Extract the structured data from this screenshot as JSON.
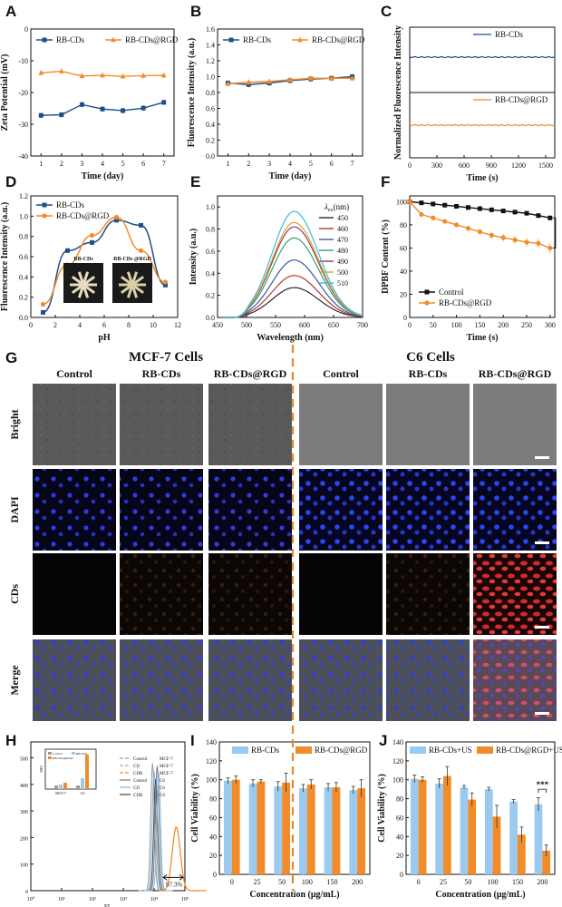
{
  "colors": {
    "blue": "#1f4e8c",
    "orange": "#f28c28",
    "lightblue": "#9cc9ee",
    "divider": "#e38a2e",
    "micro_bg": "#2a2a2a"
  },
  "chart_data": [
    {
      "panel": "A",
      "type": "line",
      "xlabel": "Time (day)",
      "ylabel": "Zeta Potential (mV)",
      "x": [
        1,
        2,
        3,
        4,
        5,
        6,
        7
      ],
      "xlim": [
        0.5,
        7.5
      ],
      "ylim": [
        -40,
        0
      ],
      "xticks": [
        "1",
        "2",
        "3",
        "4",
        "5",
        "6",
        "7"
      ],
      "yticks": [
        "0",
        "-10",
        "-20",
        "-30",
        "-40"
      ],
      "series": [
        {
          "name": "RB-CDs",
          "color": "blue",
          "marker": "square",
          "values": [
            -27.2,
            -27.0,
            -23.8,
            -25.2,
            -25.7,
            -24.9,
            -23.1
          ]
        },
        {
          "name": "RB-CDs@RGD",
          "color": "orange",
          "marker": "triangle",
          "values": [
            -13.8,
            -13.3,
            -14.8,
            -14.6,
            -14.9,
            -14.7,
            -14.6
          ]
        }
      ]
    },
    {
      "panel": "B",
      "type": "line",
      "xlabel": "Time (day)",
      "ylabel": "Fluorescence Intensity (a.u.)",
      "x": [
        1,
        2,
        3,
        4,
        5,
        6,
        7
      ],
      "xlim": [
        0.5,
        7.5
      ],
      "ylim": [
        0.0,
        1.6
      ],
      "xticks": [
        "1",
        "2",
        "3",
        "4",
        "5",
        "6",
        "7"
      ],
      "yticks": [
        "0.0",
        "0.2",
        "0.4",
        "0.6",
        "0.8",
        "1.0",
        "1.2",
        "1.4",
        "1.6"
      ],
      "series": [
        {
          "name": "RB-CDs",
          "color": "blue",
          "marker": "square",
          "values": [
            0.92,
            0.9,
            0.92,
            0.95,
            0.97,
            0.98,
            1.0
          ]
        },
        {
          "name": "RB-CDs@RGD",
          "color": "orange",
          "marker": "triangle",
          "values": [
            0.91,
            0.93,
            0.94,
            0.96,
            0.98,
            0.98,
            0.98
          ]
        }
      ]
    },
    {
      "panel": "C",
      "type": "line",
      "xlabel": "Time (s)",
      "ylabel": "Normalized Fluorescence Intensity",
      "xlim": [
        0,
        1600
      ],
      "xticks": [
        "0",
        "300",
        "600",
        "900",
        "1200",
        "1500"
      ],
      "series": [
        {
          "name": "RB-CDs",
          "color": "blue",
          "level": 1.0
        },
        {
          "name": "RB-CDs@RGD",
          "color": "orange",
          "level": 1.0
        }
      ]
    },
    {
      "panel": "D",
      "type": "line",
      "xlabel": "pH",
      "ylabel": "Fluorescence Intensity (a.u.)",
      "x": [
        1,
        3,
        5,
        7,
        9,
        11
      ],
      "xlim": [
        0,
        12
      ],
      "ylim": [
        0,
        1.2
      ],
      "xticks": [
        "0",
        "2",
        "4",
        "6",
        "8",
        "10",
        "12"
      ],
      "yticks": [
        "0.0",
        "0.2",
        "0.4",
        "0.6",
        "0.8",
        "1.0",
        "1.2"
      ],
      "series": [
        {
          "name": "RB-CDs",
          "color": "blue",
          "marker": "square",
          "x": [
            1,
            3,
            5,
            7,
            9,
            11
          ],
          "values": [
            0.05,
            0.66,
            0.74,
            0.96,
            0.91,
            0.32
          ]
        },
        {
          "name": "RB-CDs@RGD",
          "color": "orange",
          "marker": "circle",
          "x": [
            1,
            3,
            5,
            7,
            9,
            11
          ],
          "values": [
            0.13,
            0.52,
            0.81,
            0.99,
            0.66,
            0.35
          ]
        }
      ],
      "inset_labels": [
        "RB-CDs",
        "RB-CDs @RGD"
      ]
    },
    {
      "panel": "E",
      "type": "line",
      "xlabel": "Wavelength (nm)",
      "ylabel": "Intensity (a.u.)",
      "xlim": [
        450,
        700
      ],
      "ylim": [
        0,
        1.1
      ],
      "xticks": [
        "450",
        "500",
        "550",
        "600",
        "650",
        "700"
      ],
      "yticks": [
        "0.0",
        "0.2",
        "0.4",
        "0.6",
        "0.8",
        "1.0"
      ],
      "legend_title": "λ",
      "legend_sub": "ex",
      "legend_unit": "(nm)",
      "peak_nm": 582,
      "series": [
        {
          "name": "450",
          "color": "#2b2b2b",
          "peak": 0.27
        },
        {
          "name": "460",
          "color": "#b03a2e",
          "peak": 0.38
        },
        {
          "name": "470",
          "color": "#3a56a6",
          "peak": 0.52
        },
        {
          "name": "480",
          "color": "#3d9a73",
          "peak": 0.72
        },
        {
          "name": "490",
          "color": "#8e3a59",
          "peak": 0.82
        },
        {
          "name": "500",
          "color": "#d6a22b",
          "peak": 0.86
        },
        {
          "name": "510",
          "color": "#33bfe0",
          "peak": 0.96
        }
      ]
    },
    {
      "panel": "F",
      "type": "line",
      "xlabel": "Time (s)",
      "ylabel": "DPBF Content (%)",
      "x": [
        0,
        25,
        50,
        75,
        100,
        125,
        150,
        175,
        200,
        225,
        250,
        275,
        300
      ],
      "xlim": [
        0,
        310
      ],
      "ylim": [
        0,
        105
      ],
      "xticks": [
        "0",
        "50",
        "100",
        "150",
        "200",
        "250",
        "300"
      ],
      "yticks": [
        "0",
        "20",
        "40",
        "60",
        "80",
        "100"
      ],
      "annotation": "**",
      "series": [
        {
          "name": "Control",
          "color": "#111111",
          "marker": "square",
          "values": [
            100,
            99,
            98,
            97,
            96,
            95,
            94,
            93,
            92,
            91,
            90,
            88,
            86
          ]
        },
        {
          "name": "RB-CDs@RGD",
          "color": "orange",
          "marker": "circle",
          "values": [
            100,
            89,
            86,
            83,
            80,
            77,
            74,
            71,
            69,
            67,
            65,
            64,
            60
          ]
        }
      ]
    },
    {
      "panel": "H",
      "type": "histogram",
      "xlabel": "FL",
      "xticks": [
        "10⁰",
        "10¹",
        "10²",
        "10³",
        "10⁴",
        "10⁵"
      ],
      "yticks": [
        "0",
        "100",
        "200",
        "300",
        "400",
        "500"
      ],
      "gate_label": "97.3%",
      "legend": [
        {
          "name": "Control",
          "cell": "MCF-7",
          "color": "#9a9a9a",
          "dash": "4,2"
        },
        {
          "name": "CD",
          "cell": "MCF-7",
          "color": "#7fb3df",
          "dash": "4,2"
        },
        {
          "name": "CDR",
          "cell": "MCF-7",
          "color": "#f28c28",
          "dash": "4,2"
        },
        {
          "name": "Control",
          "cell": "C6",
          "color": "#777777",
          "dash": ""
        },
        {
          "name": "CD",
          "cell": "C6",
          "color": "#7fb3df",
          "dash": ""
        },
        {
          "name": "CDR",
          "cell": "C6",
          "color": "#444444",
          "dash": ""
        }
      ],
      "inset": {
        "ylabel": "MFI",
        "categories": [
          "MCF-7",
          "C6"
        ],
        "legend": [
          "Control",
          "RB-CDs",
          "RB-CDs@RGD"
        ]
      }
    },
    {
      "panel": "I",
      "type": "bar",
      "xlabel": "Concentration (μg/mL)",
      "ylabel": "Cell Viability (%)",
      "categories": [
        "0",
        "25",
        "50",
        "100",
        "150",
        "200"
      ],
      "ylim": [
        0,
        140
      ],
      "yticks": [
        "0",
        "20",
        "40",
        "60",
        "80",
        "100",
        "120",
        "140"
      ],
      "series": [
        {
          "name": "RB-CDs",
          "color": "lightblue",
          "values": [
            99,
            96,
            93,
            91,
            92,
            89
          ],
          "errors": [
            3,
            4,
            5,
            4,
            4,
            4
          ]
        },
        {
          "name": "RB-CDs@RGD",
          "color": "orange",
          "values": [
            100,
            98,
            97,
            95,
            92,
            91
          ],
          "errors": [
            4,
            2,
            10,
            5,
            5,
            9
          ]
        }
      ]
    },
    {
      "panel": "J",
      "type": "bar",
      "xlabel": "Concentration (μg/mL)",
      "ylabel": "Cell Viability (%)",
      "categories": [
        "0",
        "25",
        "50",
        "100",
        "150",
        "200"
      ],
      "ylim": [
        0,
        140
      ],
      "yticks": [
        "0",
        "20",
        "40",
        "60",
        "80",
        "100",
        "120",
        "140"
      ],
      "annotation": "***",
      "series": [
        {
          "name": "RB-CDs+US",
          "color": "lightblue",
          "values": [
            101,
            96,
            92,
            90,
            77,
            74
          ],
          "errors": [
            4,
            5,
            2,
            2,
            2,
            7
          ]
        },
        {
          "name": "RB-CDs@RGD+US",
          "color": "orange",
          "values": [
            100,
            104,
            79,
            61,
            42,
            25
          ],
          "errors": [
            3,
            10,
            7,
            12,
            8,
            6
          ]
        }
      ]
    }
  ],
  "microscopy": {
    "panel": "G",
    "groups": [
      "MCF-7 Cells",
      "C6 Cells"
    ],
    "columns": [
      "Control",
      "RB-CDs",
      "RB-CDs@RGD",
      "Control",
      "RB-CDs",
      "RB-CDs@RGD"
    ],
    "rows": [
      "Bright",
      "DAPI",
      "CDs",
      "Merge"
    ]
  },
  "panel_labels": [
    "A",
    "B",
    "C",
    "D",
    "E",
    "F",
    "G",
    "H",
    "I",
    "J"
  ]
}
